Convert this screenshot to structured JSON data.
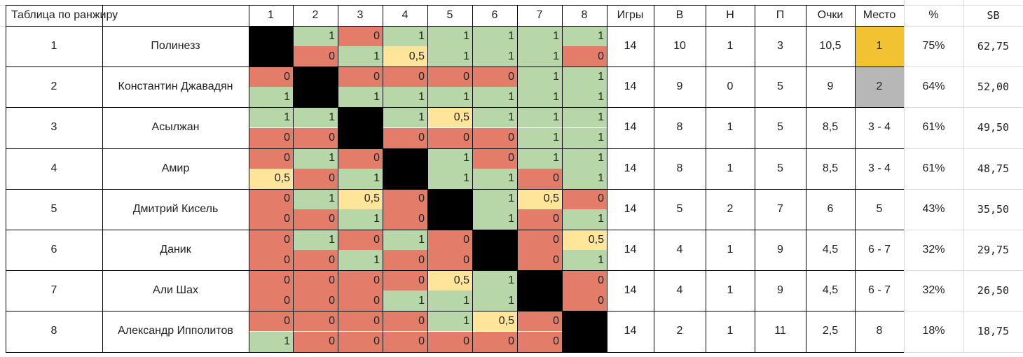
{
  "title": "Таблица по ранжиру",
  "columns": {
    "opponents": [
      "1",
      "2",
      "3",
      "4",
      "5",
      "6",
      "7",
      "8"
    ],
    "games": "Игры",
    "wins": "В",
    "draws": "Н",
    "losses": "П",
    "points": "Очки",
    "place": "Место",
    "percent": "%",
    "sb": "SB"
  },
  "colors": {
    "win": "#b7d7a8",
    "loss": "#e47c6a",
    "draw": "#ffe599",
    "self": "#000000",
    "first_place": "#f1c232",
    "second_place": "#b7b7b7"
  },
  "players": [
    {
      "rank": "1",
      "name": "Полинезз",
      "games": "14",
      "wins": "10",
      "draws": "1",
      "losses": "3",
      "points": "10,5",
      "place": "1",
      "percent": "75%",
      "sb": "62,75",
      "top": [
        "X",
        "1",
        "0",
        "1",
        "1",
        "1",
        "1",
        "1"
      ],
      "bottom": [
        "X",
        "0",
        "1",
        "0,5",
        "1",
        "1",
        "1",
        "0"
      ]
    },
    {
      "rank": "2",
      "name": "Константин Джавадян",
      "games": "14",
      "wins": "9",
      "draws": "0",
      "losses": "5",
      "points": "9",
      "place": "2",
      "percent": "64%",
      "sb": "52,00",
      "top": [
        "0",
        "X",
        "0",
        "0",
        "0",
        "0",
        "1",
        "1"
      ],
      "bottom": [
        "1",
        "X",
        "1",
        "1",
        "1",
        "1",
        "1",
        "1"
      ]
    },
    {
      "rank": "3",
      "name": "Асылжан",
      "games": "14",
      "wins": "8",
      "draws": "1",
      "losses": "5",
      "points": "8,5",
      "place": "3 - 4",
      "percent": "61%",
      "sb": "49,50",
      "top": [
        "1",
        "1",
        "X",
        "1",
        "0,5",
        "1",
        "1",
        "1"
      ],
      "bottom": [
        "0",
        "0",
        "X",
        "0",
        "0",
        "0",
        "1",
        "1"
      ]
    },
    {
      "rank": "4",
      "name": "Амир",
      "games": "14",
      "wins": "8",
      "draws": "1",
      "losses": "5",
      "points": "8,5",
      "place": "3 - 4",
      "percent": "61%",
      "sb": "48,75",
      "top": [
        "0",
        "1",
        "0",
        "X",
        "1",
        "0",
        "1",
        "1"
      ],
      "bottom": [
        "0,5",
        "0",
        "1",
        "X",
        "1",
        "1",
        "0",
        "1"
      ]
    },
    {
      "rank": "5",
      "name": "Дмитрий Кисель",
      "games": "14",
      "wins": "5",
      "draws": "2",
      "losses": "7",
      "points": "6",
      "place": "5",
      "percent": "43%",
      "sb": "35,50",
      "top": [
        "0",
        "1",
        "0,5",
        "0",
        "X",
        "1",
        "0,5",
        "0"
      ],
      "bottom": [
        "0",
        "0",
        "1",
        "0",
        "X",
        "1",
        "0",
        "1"
      ]
    },
    {
      "rank": "6",
      "name": "Даник",
      "games": "14",
      "wins": "4",
      "draws": "1",
      "losses": "9",
      "points": "4,5",
      "place": "6 - 7",
      "percent": "32%",
      "sb": "29,75",
      "top": [
        "0",
        "1",
        "0",
        "1",
        "0",
        "X",
        "0",
        "0,5"
      ],
      "bottom": [
        "0",
        "0",
        "1",
        "0",
        "0",
        "X",
        "0",
        "1"
      ]
    },
    {
      "rank": "7",
      "name": "Али Шах",
      "games": "14",
      "wins": "4",
      "draws": "1",
      "losses": "9",
      "points": "4,5",
      "place": "6 - 7",
      "percent": "32%",
      "sb": "26,50",
      "top": [
        "0",
        "0",
        "0",
        "0",
        "0,5",
        "1",
        "X",
        "0"
      ],
      "bottom": [
        "0",
        "0",
        "0",
        "1",
        "1",
        "1",
        "X",
        "0"
      ]
    },
    {
      "rank": "8",
      "name": "Александр Ипполитов",
      "games": "14",
      "wins": "2",
      "draws": "1",
      "losses": "11",
      "points": "2,5",
      "place": "8",
      "percent": "18%",
      "sb": "18,75",
      "top": [
        "0",
        "0",
        "0",
        "0",
        "1",
        "0,5",
        "0",
        "X"
      ],
      "bottom": [
        "1",
        "0",
        "0",
        "0",
        "0",
        "0",
        "0",
        "X"
      ]
    }
  ]
}
